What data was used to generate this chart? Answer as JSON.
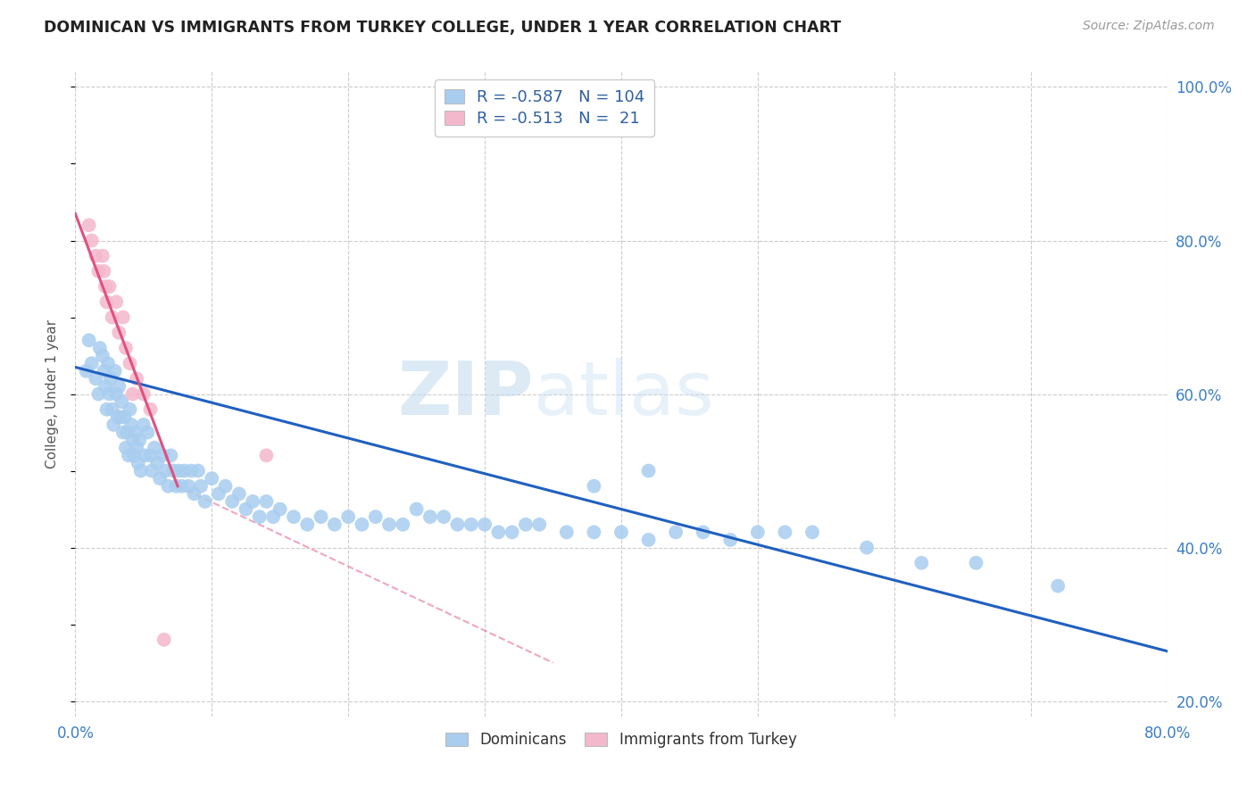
{
  "title": "DOMINICAN VS IMMIGRANTS FROM TURKEY COLLEGE, UNDER 1 YEAR CORRELATION CHART",
  "source": "Source: ZipAtlas.com",
  "ylabel": "College, Under 1 year",
  "xlim": [
    0.0,
    0.8
  ],
  "ylim": [
    0.18,
    1.02
  ],
  "xticks": [
    0.0,
    0.1,
    0.2,
    0.3,
    0.4,
    0.5,
    0.6,
    0.7,
    0.8
  ],
  "yticks_right": [
    0.2,
    0.4,
    0.6,
    0.8,
    1.0
  ],
  "yticklabels_right": [
    "20.0%",
    "40.0%",
    "60.0%",
    "80.0%",
    "100.0%"
  ],
  "blue_R": "-0.587",
  "blue_N": "104",
  "pink_R": "-0.513",
  "pink_N": "21",
  "blue_color": "#A8CDEF",
  "pink_color": "#F4B8CC",
  "blue_line_color": "#2060C0",
  "pink_line_color": "#E05080",
  "legend_label_blue": "Dominicans",
  "legend_label_pink": "Immigrants from Turkey",
  "watermark_zip": "ZIP",
  "watermark_atlas": "atlas",
  "blue_scatter_x": [
    0.008,
    0.01,
    0.012,
    0.015,
    0.017,
    0.018,
    0.02,
    0.021,
    0.022,
    0.023,
    0.024,
    0.025,
    0.026,
    0.027,
    0.028,
    0.029,
    0.03,
    0.031,
    0.032,
    0.033,
    0.034,
    0.035,
    0.036,
    0.037,
    0.038,
    0.039,
    0.04,
    0.041,
    0.042,
    0.043,
    0.044,
    0.045,
    0.046,
    0.047,
    0.048,
    0.05,
    0.051,
    0.053,
    0.055,
    0.056,
    0.058,
    0.06,
    0.062,
    0.064,
    0.066,
    0.068,
    0.07,
    0.072,
    0.074,
    0.076,
    0.078,
    0.08,
    0.083,
    0.085,
    0.087,
    0.09,
    0.092,
    0.095,
    0.1,
    0.105,
    0.11,
    0.115,
    0.12,
    0.125,
    0.13,
    0.135,
    0.14,
    0.145,
    0.15,
    0.16,
    0.17,
    0.18,
    0.19,
    0.2,
    0.21,
    0.22,
    0.23,
    0.24,
    0.25,
    0.26,
    0.27,
    0.28,
    0.29,
    0.3,
    0.31,
    0.32,
    0.33,
    0.34,
    0.36,
    0.38,
    0.4,
    0.42,
    0.44,
    0.46,
    0.48,
    0.5,
    0.52,
    0.54,
    0.58,
    0.62,
    0.66,
    0.72,
    0.38,
    0.42
  ],
  "blue_scatter_y": [
    0.63,
    0.67,
    0.64,
    0.62,
    0.6,
    0.66,
    0.65,
    0.63,
    0.61,
    0.58,
    0.64,
    0.6,
    0.62,
    0.58,
    0.56,
    0.63,
    0.6,
    0.57,
    0.61,
    0.57,
    0.59,
    0.55,
    0.57,
    0.53,
    0.55,
    0.52,
    0.58,
    0.56,
    0.54,
    0.52,
    0.55,
    0.53,
    0.51,
    0.54,
    0.5,
    0.56,
    0.52,
    0.55,
    0.52,
    0.5,
    0.53,
    0.51,
    0.49,
    0.52,
    0.5,
    0.48,
    0.52,
    0.5,
    0.48,
    0.5,
    0.48,
    0.5,
    0.48,
    0.5,
    0.47,
    0.5,
    0.48,
    0.46,
    0.49,
    0.47,
    0.48,
    0.46,
    0.47,
    0.45,
    0.46,
    0.44,
    0.46,
    0.44,
    0.45,
    0.44,
    0.43,
    0.44,
    0.43,
    0.44,
    0.43,
    0.44,
    0.43,
    0.43,
    0.45,
    0.44,
    0.44,
    0.43,
    0.43,
    0.43,
    0.42,
    0.42,
    0.43,
    0.43,
    0.42,
    0.42,
    0.42,
    0.41,
    0.42,
    0.42,
    0.41,
    0.42,
    0.42,
    0.42,
    0.4,
    0.38,
    0.38,
    0.35,
    0.48,
    0.5
  ],
  "pink_scatter_x": [
    0.01,
    0.012,
    0.015,
    0.017,
    0.02,
    0.021,
    0.022,
    0.023,
    0.025,
    0.027,
    0.03,
    0.032,
    0.035,
    0.037,
    0.04,
    0.042,
    0.045,
    0.05,
    0.055,
    0.065,
    0.14
  ],
  "pink_scatter_y": [
    0.82,
    0.8,
    0.78,
    0.76,
    0.78,
    0.76,
    0.74,
    0.72,
    0.74,
    0.7,
    0.72,
    0.68,
    0.7,
    0.66,
    0.64,
    0.6,
    0.62,
    0.6,
    0.58,
    0.28,
    0.52
  ],
  "blue_line_x0": 0.0,
  "blue_line_y0": 0.635,
  "blue_line_x1": 0.8,
  "blue_line_y1": 0.265,
  "pink_line_solid_x0": 0.0,
  "pink_line_solid_y0": 0.835,
  "pink_line_solid_x1": 0.075,
  "pink_line_solid_y1": 0.48,
  "pink_line_dash_x0": 0.075,
  "pink_line_dash_y0": 0.48,
  "pink_line_dash_x1": 0.35,
  "pink_line_dash_y1": 0.25
}
